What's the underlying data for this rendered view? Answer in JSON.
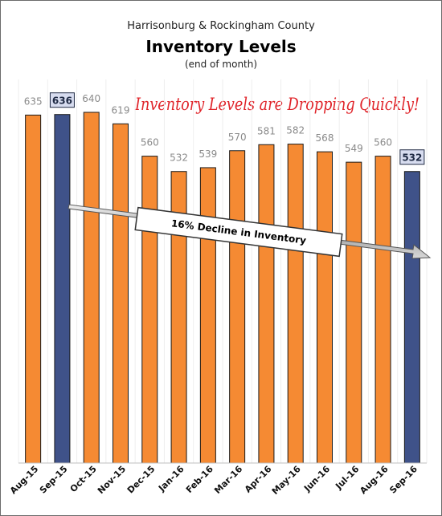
{
  "header": {
    "subtitle": "Harrisonburg & Rockingham County",
    "title": "Inventory Levels",
    "note": "(end of month)",
    "headline": "Inventory Levels are Dropping Quickly!"
  },
  "trend": {
    "label": "16% Decline in Inventory"
  },
  "colors": {
    "bar": "#f58a33",
    "highlight": "#3f5289",
    "highlight_label_bg": "#d7dcef",
    "headline": "#e0242a"
  },
  "chart_data": {
    "type": "bar",
    "title": "Inventory Levels",
    "subtitle": "Harrisonburg & Rockingham County",
    "xlabel": "",
    "ylabel": "",
    "ylim": [
      0,
      700
    ],
    "grid": true,
    "categories": [
      "Aug-15",
      "Sep-15",
      "Oct-15",
      "Nov-15",
      "Dec-15",
      "Jan-16",
      "Feb-16",
      "Mar-16",
      "Apr-16",
      "May-16",
      "Jun-16",
      "Jul-16",
      "Aug-16",
      "Sep-16"
    ],
    "values": [
      635,
      636,
      640,
      619,
      560,
      532,
      539,
      570,
      581,
      582,
      568,
      549,
      560,
      532
    ],
    "highlighted": [
      "Sep-15",
      "Sep-16"
    ]
  }
}
